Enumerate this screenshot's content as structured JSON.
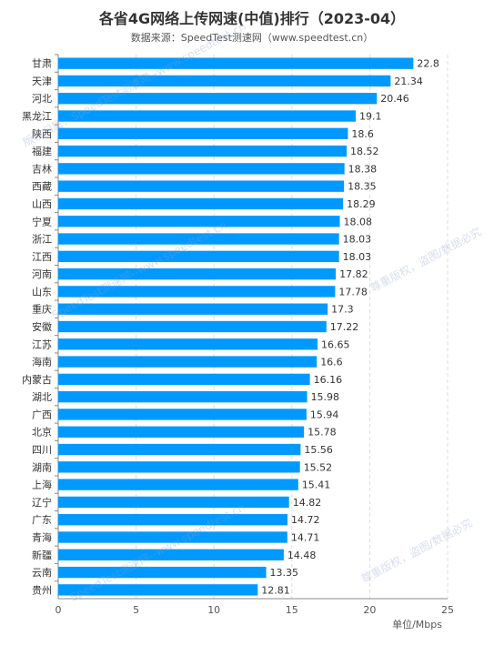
{
  "header": {
    "title": "各省4G网络上传网速(中值)排行（2023-04）",
    "subtitle": "数据来源：SpeedTest测速网（www.speedtest.cn）"
  },
  "watermark": {
    "line1": "SpeedTest测速网--www.speedtest.cn",
    "line2": "版权归属：SpeedTest测速网--www.speedtest.cn",
    "line3": "尊重版权，盗图/数据必究"
  },
  "colors": {
    "bar": "#0099ff",
    "grid": "#dddddd",
    "axis": "#888888",
    "text": "#333333"
  },
  "chart_data": {
    "type": "bar",
    "orientation": "horizontal",
    "title": "各省4G网络上传网速(中值)排行（2023-04）",
    "subtitle": "数据来源：SpeedTest测速网（www.speedtest.cn）",
    "xlabel": "单位/Mbps",
    "ylabel": "",
    "xlim": [
      0,
      25
    ],
    "xticks": [
      0,
      5,
      10,
      15,
      20,
      25
    ],
    "grid": true,
    "categories": [
      "甘肃",
      "天津",
      "河北",
      "黑龙江",
      "陕西",
      "福建",
      "吉林",
      "西藏",
      "山西",
      "宁夏",
      "浙江",
      "江西",
      "河南",
      "山东",
      "重庆",
      "安徽",
      "江苏",
      "海南",
      "内蒙古",
      "湖北",
      "广西",
      "北京",
      "四川",
      "湖南",
      "上海",
      "辽宁",
      "广东",
      "青海",
      "新疆",
      "云南",
      "贵州"
    ],
    "values": [
      22.8,
      21.34,
      20.46,
      19.1,
      18.6,
      18.52,
      18.38,
      18.35,
      18.29,
      18.08,
      18.03,
      18.03,
      17.82,
      17.78,
      17.3,
      17.22,
      16.65,
      16.6,
      16.16,
      15.98,
      15.94,
      15.78,
      15.56,
      15.52,
      15.41,
      14.82,
      14.72,
      14.71,
      14.48,
      13.35,
      12.81
    ],
    "data_labels": [
      "22.8",
      "21.34",
      "20.46",
      "19.1",
      "18.6",
      "18.52",
      "18.38",
      "18.35",
      "18.29",
      "18.08",
      "18.03",
      "18.03",
      "17.82",
      "17.78",
      "17.3",
      "17.22",
      "16.65",
      "16.6",
      "16.16",
      "15.98",
      "15.94",
      "15.78",
      "15.56",
      "15.52",
      "15.41",
      "14.82",
      "14.72",
      "14.71",
      "14.48",
      "13.35",
      "12.81"
    ]
  }
}
